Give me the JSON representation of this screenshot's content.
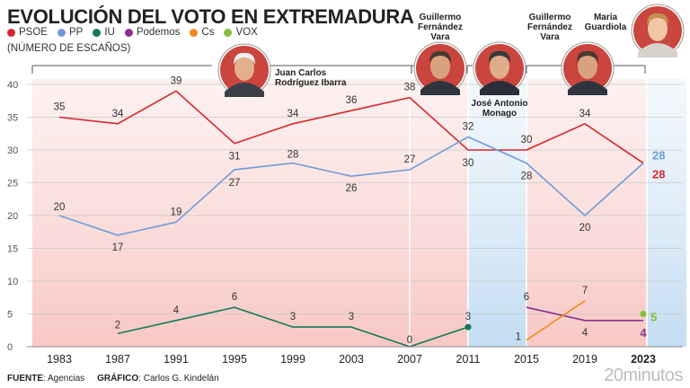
{
  "title": "EVOLUCIÓN DEL VOTO EN EXTREMADURA",
  "subtitle": "(NÚMERO DE ESCAÑOS)",
  "footer": {
    "source_label": "FUENTE",
    "source_value": ": Agencias",
    "graphic_label": "GRÁFICO",
    "graphic_value": ": Carlos G. Kindelán"
  },
  "brand": "20minutos",
  "presidents": [
    {
      "name": "Juan Carlos\nRodríguez Ibarra",
      "from": "1983",
      "to": "2007"
    },
    {
      "name": "Guillermo\nFernández\nVara",
      "from": "2007",
      "to": "2011"
    },
    {
      "name": "José Antonio\nMonago",
      "from": "2011",
      "to": "2015"
    },
    {
      "name": "Guillermo\nFernández\nVara",
      "from": "2015",
      "to": "2023"
    },
    {
      "name": "María\nGuardiola",
      "from": "2023",
      "to": "2023"
    }
  ],
  "chart_data": {
    "type": "line",
    "x": [
      "1983",
      "1987",
      "1991",
      "1995",
      "1999",
      "2003",
      "2007",
      "2011",
      "2015",
      "2019",
      "2023"
    ],
    "ylim": [
      0,
      40
    ],
    "yticks": [
      0,
      5,
      10,
      15,
      20,
      25,
      30,
      35,
      40
    ],
    "grid": true,
    "legend_position": "top-left",
    "series": [
      {
        "name": "PSOE",
        "color": "#d7262f",
        "values": [
          35,
          34,
          39,
          31,
          34,
          36,
          38,
          30,
          30,
          34,
          28
        ]
      },
      {
        "name": "PP",
        "color": "#6f9bd8",
        "values": [
          20,
          17,
          19,
          27,
          28,
          26,
          27,
          32,
          28,
          20,
          28
        ]
      },
      {
        "name": "IU",
        "color": "#147a5a",
        "values": [
          null,
          2,
          4,
          6,
          3,
          3,
          0,
          3,
          null,
          null,
          null
        ]
      },
      {
        "name": "Podemos",
        "color": "#8b2f8f",
        "values": [
          null,
          null,
          null,
          null,
          null,
          null,
          null,
          null,
          6,
          4,
          4
        ]
      },
      {
        "name": "Cs",
        "color": "#f18a1c",
        "values": [
          null,
          null,
          null,
          null,
          null,
          null,
          null,
          null,
          1,
          7,
          null
        ]
      },
      {
        "name": "VOX",
        "color": "#86bd3a",
        "values": [
          null,
          null,
          null,
          null,
          null,
          null,
          null,
          null,
          null,
          null,
          5
        ]
      }
    ]
  }
}
